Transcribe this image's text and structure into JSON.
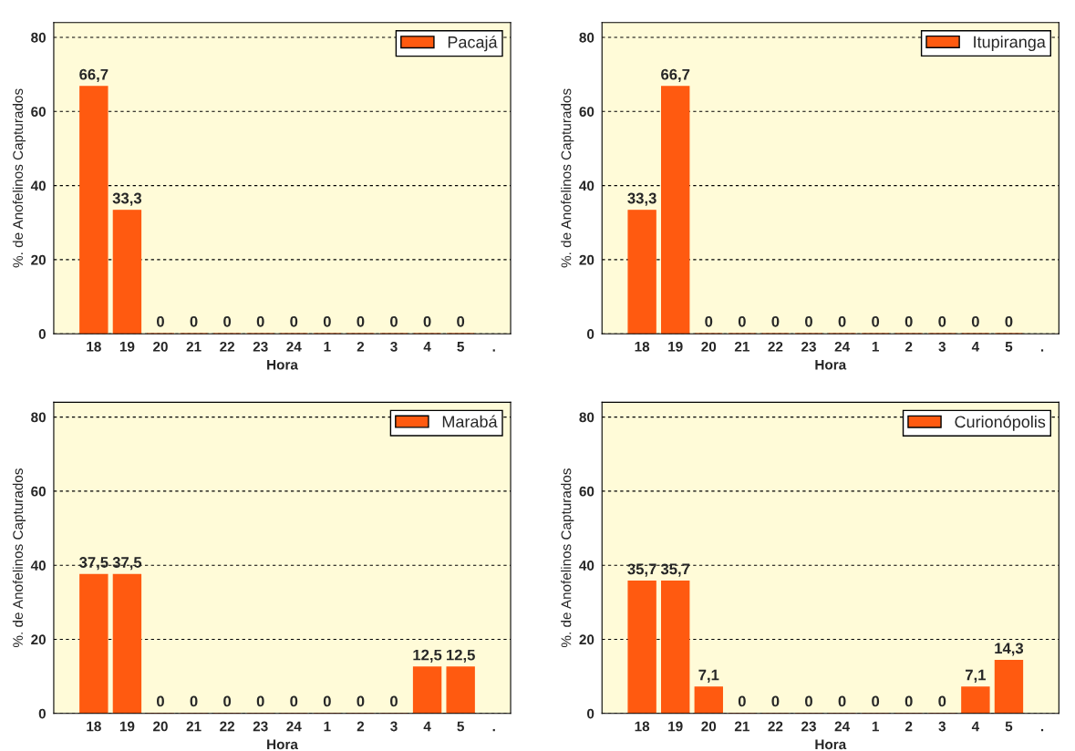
{
  "chart_data": [
    {
      "type": "bar",
      "xlabel": "Hora",
      "ylabel": "%. de Anofelinos Capturados",
      "categories": [
        "18",
        "19",
        "20",
        "21",
        "22",
        "23",
        "24",
        "1",
        "2",
        "3",
        "4",
        "5",
        "."
      ],
      "series": [
        {
          "name": "Pacajá",
          "color": "#ff5a10",
          "values": [
            66.7,
            33.3,
            0,
            0,
            0,
            0,
            0,
            0,
            0,
            0,
            0,
            0,
            null
          ]
        }
      ],
      "value_labels": [
        "66,7",
        "33,3",
        "0",
        "0",
        "0",
        "0",
        "0",
        "0",
        "0",
        "0",
        "0",
        "0",
        null
      ],
      "ylim": [
        0,
        84
      ],
      "yticks": [
        0,
        20,
        40,
        60,
        80
      ],
      "grid": "y",
      "legend": "top right"
    },
    {
      "type": "bar",
      "xlabel": "Hora",
      "ylabel": "%. de Anofelinos Capturados",
      "categories": [
        "18",
        "19",
        "20",
        "21",
        "22",
        "23",
        "24",
        "1",
        "2",
        "3",
        "4",
        "5",
        "."
      ],
      "series": [
        {
          "name": "Itupiranga",
          "color": "#ff5a10",
          "values": [
            33.3,
            66.7,
            0,
            0,
            0,
            0,
            0,
            0,
            0,
            0,
            0,
            0,
            null
          ]
        }
      ],
      "value_labels": [
        "33,3",
        "66,7",
        "0",
        "0",
        "0",
        "0",
        "0",
        "0",
        "0",
        "0",
        "0",
        "0",
        null
      ],
      "ylim": [
        0,
        84
      ],
      "yticks": [
        0,
        20,
        40,
        60,
        80
      ],
      "grid": "y",
      "legend": "top right"
    },
    {
      "type": "bar",
      "xlabel": "Hora",
      "ylabel": "%. de Anofelinos Capturados",
      "categories": [
        "18",
        "19",
        "20",
        "21",
        "22",
        "23",
        "24",
        "1",
        "2",
        "3",
        "4",
        "5",
        "."
      ],
      "series": [
        {
          "name": "Marabá",
          "color": "#ff5a10",
          "values": [
            37.5,
            37.5,
            0,
            0,
            0,
            0,
            0,
            0,
            0,
            0,
            12.5,
            12.5,
            null
          ]
        }
      ],
      "value_labels": [
        "37,5",
        "37,5",
        "0",
        "0",
        "0",
        "0",
        "0",
        "0",
        "0",
        "0",
        "12,5",
        "12,5",
        null
      ],
      "ylim": [
        0,
        84
      ],
      "yticks": [
        0,
        20,
        40,
        60,
        80
      ],
      "grid": "y",
      "legend": "top right"
    },
    {
      "type": "bar",
      "xlabel": "Hora",
      "ylabel": "%. de Anofelinos Capturados",
      "categories": [
        "18",
        "19",
        "20",
        "21",
        "22",
        "23",
        "24",
        "1",
        "2",
        "3",
        "4",
        "5",
        "."
      ],
      "series": [
        {
          "name": "Curionópolis",
          "color": "#ff5a10",
          "values": [
            35.7,
            35.7,
            7.1,
            0,
            0,
            0,
            0,
            0,
            0,
            0,
            7.1,
            14.3,
            null
          ]
        }
      ],
      "value_labels": [
        "35,7",
        "35,7",
        "7,1",
        "0",
        "0",
        "0",
        "0",
        "0",
        "0",
        "0",
        "7,1",
        "14,3",
        null
      ],
      "ylim": [
        0,
        84
      ],
      "yticks": [
        0,
        20,
        40,
        60,
        80
      ],
      "grid": "y",
      "legend": "top right"
    }
  ]
}
